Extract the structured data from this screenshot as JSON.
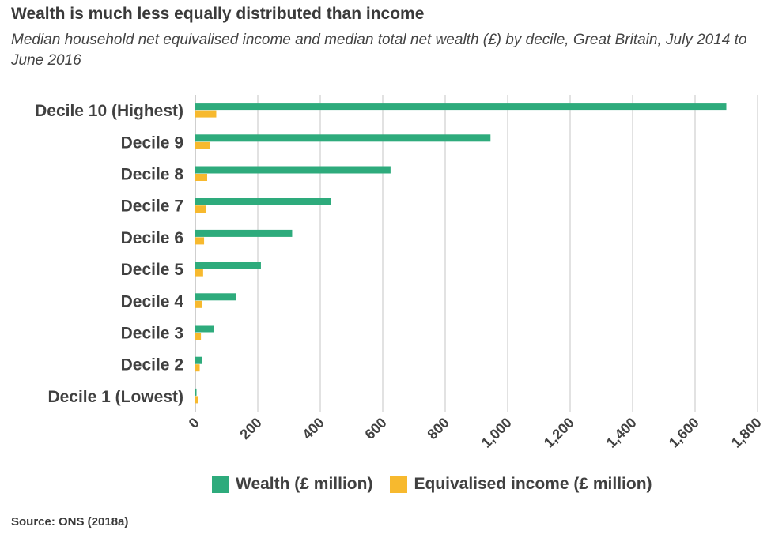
{
  "title": "Wealth is much less equally distributed than income",
  "subtitle": "Median household net equivalised income and median total net wealth (£) by decile, Great Britain, July 2014 to June 2016",
  "source": "Source: ONS (2018a)",
  "colors": {
    "wealth": "#2eab7c",
    "income": "#f7b92e",
    "grid": "#d9d9d9",
    "text": "#404040"
  },
  "chart_data": {
    "type": "bar",
    "orientation": "horizontal",
    "categories": [
      "Decile 10 (Highest)",
      "Decile 9",
      "Decile 8",
      "Decile 7",
      "Decile 6",
      "Decile 5",
      "Decile 4",
      "Decile 3",
      "Decile 2",
      "Decile 1 (Lowest)"
    ],
    "series": [
      {
        "name": "Wealth (£ million)",
        "values": [
          1700,
          945,
          625,
          435,
          310,
          210,
          130,
          60,
          22,
          3
        ]
      },
      {
        "name": "Equivalised income (£ million)",
        "values": [
          67,
          48,
          38,
          33,
          28,
          25,
          21,
          18,
          14,
          10
        ]
      }
    ],
    "xlim": [
      0,
      1800
    ],
    "ticks": [
      "0",
      "200",
      "400",
      "600",
      "800",
      "1,000",
      "1,200",
      "1,400",
      "1,600",
      "1,800"
    ],
    "tick_values": [
      0,
      200,
      400,
      600,
      800,
      1000,
      1200,
      1400,
      1600,
      1800
    ],
    "grid": true,
    "legend": "bottom"
  }
}
